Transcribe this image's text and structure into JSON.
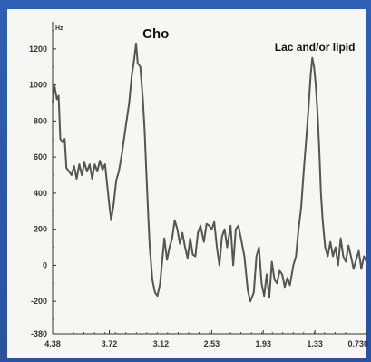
{
  "chart_data": {
    "type": "line",
    "title": "",
    "xlabel": "",
    "ylabel": "",
    "y_axis_unit_label": "Hz",
    "xlim": [
      4.38,
      0.73
    ],
    "ylim": [
      -380,
      1350
    ],
    "x_ticks": [
      {
        "value": 4.38,
        "label": "4.38"
      },
      {
        "value": 3.72,
        "label": "3.72"
      },
      {
        "value": 3.12,
        "label": "3.12"
      },
      {
        "value": 2.53,
        "label": "2.53"
      },
      {
        "value": 1.93,
        "label": "1.93"
      },
      {
        "value": 1.33,
        "label": "1.33"
      },
      {
        "value": 0.73,
        "label": "0.730"
      }
    ],
    "y_ticks": [
      {
        "value": 1200,
        "label": "1200"
      },
      {
        "value": 1000,
        "label": "1000"
      },
      {
        "value": 800,
        "label": "800"
      },
      {
        "value": 600,
        "label": "600"
      },
      {
        "value": 400,
        "label": "400"
      },
      {
        "value": 200,
        "label": "200"
      },
      {
        "value": 0,
        "label": "0"
      },
      {
        "value": -200,
        "label": "-200"
      },
      {
        "value": -380,
        "label": "-380"
      }
    ],
    "annotations": [
      {
        "text": "Cho",
        "x": 3.18,
        "y": 1260
      },
      {
        "text": "Lac and/or lipid",
        "x": 1.33,
        "y": 1190
      }
    ],
    "series": [
      {
        "values": [
          [
            4.38,
            900
          ],
          [
            4.36,
            1000
          ],
          [
            4.33,
            920
          ],
          [
            4.31,
            940
          ],
          [
            4.29,
            700
          ],
          [
            4.26,
            680
          ],
          [
            4.24,
            700
          ],
          [
            4.22,
            540
          ],
          [
            4.19,
            520
          ],
          [
            4.16,
            500
          ],
          [
            4.13,
            550
          ],
          [
            4.1,
            480
          ],
          [
            4.07,
            560
          ],
          [
            4.04,
            500
          ],
          [
            4.01,
            570
          ],
          [
            3.98,
            520
          ],
          [
            3.95,
            560
          ],
          [
            3.92,
            480
          ],
          [
            3.89,
            560
          ],
          [
            3.86,
            520
          ],
          [
            3.83,
            580
          ],
          [
            3.8,
            530
          ],
          [
            3.77,
            560
          ],
          [
            3.74,
            420
          ],
          [
            3.72,
            330
          ],
          [
            3.7,
            250
          ],
          [
            3.67,
            340
          ],
          [
            3.64,
            470
          ],
          [
            3.61,
            520
          ],
          [
            3.58,
            600
          ],
          [
            3.55,
            700
          ],
          [
            3.52,
            800
          ],
          [
            3.49,
            900
          ],
          [
            3.46,
            1050
          ],
          [
            3.43,
            1150
          ],
          [
            3.41,
            1230
          ],
          [
            3.39,
            1120
          ],
          [
            3.36,
            1100
          ],
          [
            3.33,
            920
          ],
          [
            3.31,
            750
          ],
          [
            3.29,
            520
          ],
          [
            3.27,
            300
          ],
          [
            3.25,
            100
          ],
          [
            3.22,
            -80
          ],
          [
            3.19,
            -150
          ],
          [
            3.16,
            -170
          ],
          [
            3.13,
            -100
          ],
          [
            3.1,
            50
          ],
          [
            3.08,
            150
          ],
          [
            3.05,
            30
          ],
          [
            3.02,
            100
          ],
          [
            2.99,
            150
          ],
          [
            2.96,
            250
          ],
          [
            2.93,
            200
          ],
          [
            2.9,
            120
          ],
          [
            2.87,
            180
          ],
          [
            2.84,
            100
          ],
          [
            2.81,
            40
          ],
          [
            2.78,
            150
          ],
          [
            2.75,
            60
          ],
          [
            2.72,
            50
          ],
          [
            2.69,
            180
          ],
          [
            2.66,
            220
          ],
          [
            2.62,
            130
          ],
          [
            2.59,
            230
          ],
          [
            2.56,
            220
          ],
          [
            2.53,
            200
          ],
          [
            2.5,
            240
          ],
          [
            2.47,
            100
          ],
          [
            2.44,
            0
          ],
          [
            2.41,
            160
          ],
          [
            2.38,
            200
          ],
          [
            2.35,
            100
          ],
          [
            2.31,
            220
          ],
          [
            2.28,
            0
          ],
          [
            2.25,
            200
          ],
          [
            2.22,
            220
          ],
          [
            2.19,
            150
          ],
          [
            2.15,
            50
          ],
          [
            2.11,
            -140
          ],
          [
            2.08,
            -200
          ],
          [
            2.04,
            -150
          ],
          [
            2.01,
            50
          ],
          [
            1.98,
            100
          ],
          [
            1.95,
            -100
          ],
          [
            1.92,
            -170
          ],
          [
            1.89,
            -50
          ],
          [
            1.86,
            -180
          ],
          [
            1.83,
            20
          ],
          [
            1.8,
            -80
          ],
          [
            1.77,
            -100
          ],
          [
            1.74,
            -30
          ],
          [
            1.71,
            -50
          ],
          [
            1.68,
            -120
          ],
          [
            1.65,
            -70
          ],
          [
            1.62,
            -110
          ],
          [
            1.58,
            0
          ],
          [
            1.55,
            50
          ],
          [
            1.52,
            200
          ],
          [
            1.49,
            320
          ],
          [
            1.46,
            520
          ],
          [
            1.43,
            700
          ],
          [
            1.4,
            900
          ],
          [
            1.38,
            1050
          ],
          [
            1.36,
            1150
          ],
          [
            1.34,
            1100
          ],
          [
            1.32,
            1000
          ],
          [
            1.3,
            850
          ],
          [
            1.28,
            650
          ],
          [
            1.26,
            400
          ],
          [
            1.24,
            250
          ],
          [
            1.21,
            100
          ],
          [
            1.18,
            50
          ],
          [
            1.15,
            130
          ],
          [
            1.12,
            50
          ],
          [
            1.09,
            100
          ],
          [
            1.06,
            0
          ],
          [
            1.03,
            150
          ],
          [
            1.0,
            50
          ],
          [
            0.97,
            20
          ],
          [
            0.94,
            110
          ],
          [
            0.91,
            50
          ],
          [
            0.88,
            -20
          ],
          [
            0.85,
            30
          ],
          [
            0.82,
            80
          ],
          [
            0.79,
            -20
          ],
          [
            0.76,
            50
          ],
          [
            0.73,
            20
          ]
        ]
      }
    ],
    "colors": {
      "frame_background": "#2a55a8",
      "plot_background": "#f6f6f4",
      "line": "#555555",
      "axis": "#333333",
      "text": "#111111"
    }
  }
}
